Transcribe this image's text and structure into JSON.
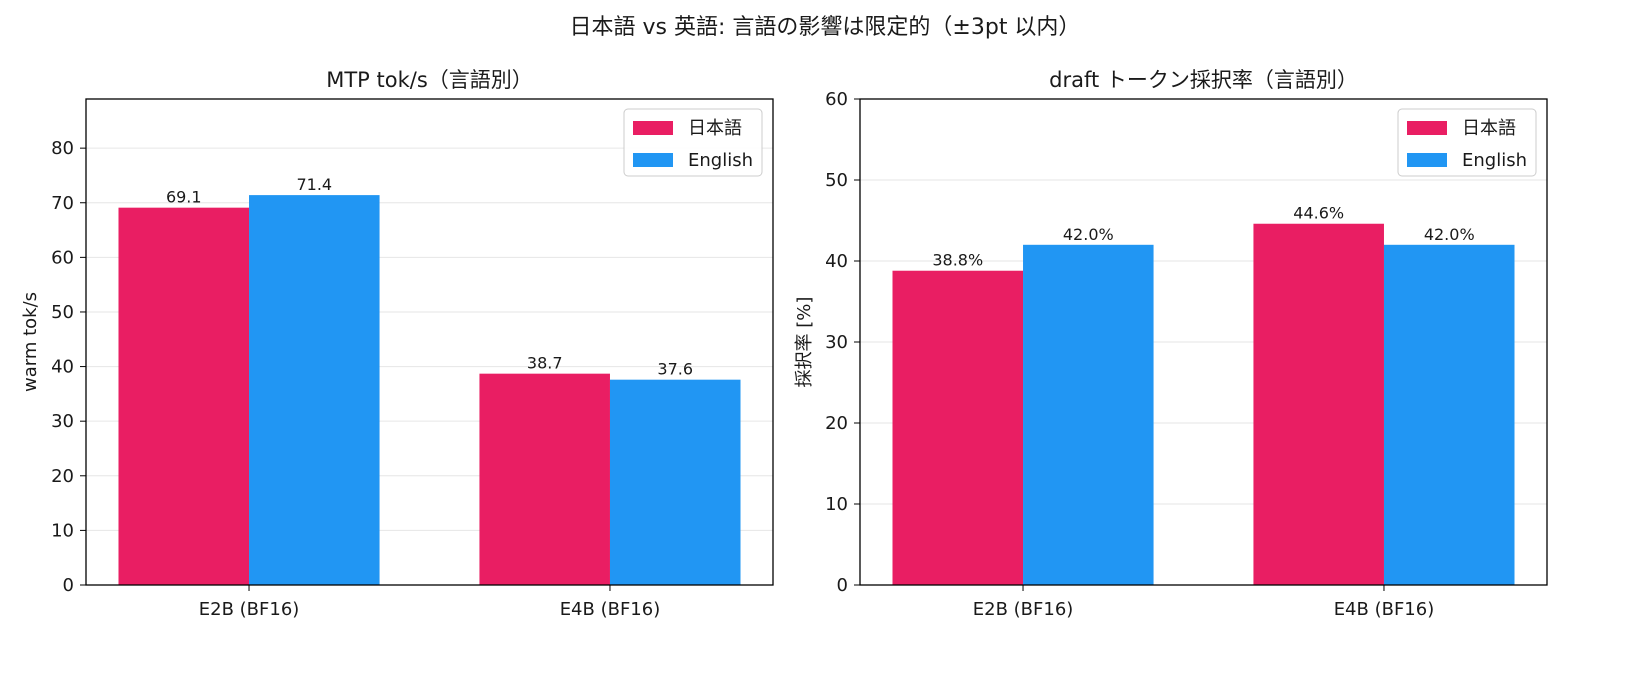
{
  "suptitle": "日本語 vs 英語: 言語の影響は限定的（±3pt 以内）",
  "colors": {
    "japanese": "#E91E63",
    "english": "#2196F3",
    "grid": "#e6e6e6",
    "axis": "#000000"
  },
  "chart_data": [
    {
      "type": "bar",
      "title": "MTP tok/s（言語別）",
      "xlabel": "",
      "ylabel": "warm tok/s",
      "categories": [
        "E2B (BF16)",
        "E4B (BF16)"
      ],
      "series": [
        {
          "name": "日本語",
          "values": [
            69.1,
            38.7
          ],
          "labels": [
            "69.1",
            "38.7"
          ]
        },
        {
          "name": "English",
          "values": [
            71.4,
            37.6
          ],
          "labels": [
            "71.4",
            "37.6"
          ]
        }
      ],
      "ylim": [
        0,
        89
      ],
      "yticks": [
        0,
        10,
        20,
        30,
        40,
        50,
        60,
        70,
        80
      ],
      "ytick_labels": [
        "0",
        "10",
        "20",
        "30",
        "40",
        "50",
        "60",
        "70",
        "80"
      ],
      "grid": true,
      "legend": "top-right"
    },
    {
      "type": "bar",
      "title": "draft トークン採択率（言語別）",
      "xlabel": "",
      "ylabel": "採択率 [%]",
      "categories": [
        "E2B (BF16)",
        "E4B (BF16)"
      ],
      "series": [
        {
          "name": "日本語",
          "values": [
            38.8,
            44.6
          ],
          "labels": [
            "38.8%",
            "44.6%"
          ]
        },
        {
          "name": "English",
          "values": [
            42.0,
            42.0
          ],
          "labels": [
            "42.0%",
            "42.0%"
          ]
        }
      ],
      "ylim": [
        0,
        60
      ],
      "yticks": [
        0,
        10,
        20,
        30,
        40,
        50,
        60
      ],
      "ytick_labels": [
        "0",
        "10",
        "20",
        "30",
        "40",
        "50",
        "60"
      ],
      "grid": true,
      "legend": "top-right"
    }
  ]
}
